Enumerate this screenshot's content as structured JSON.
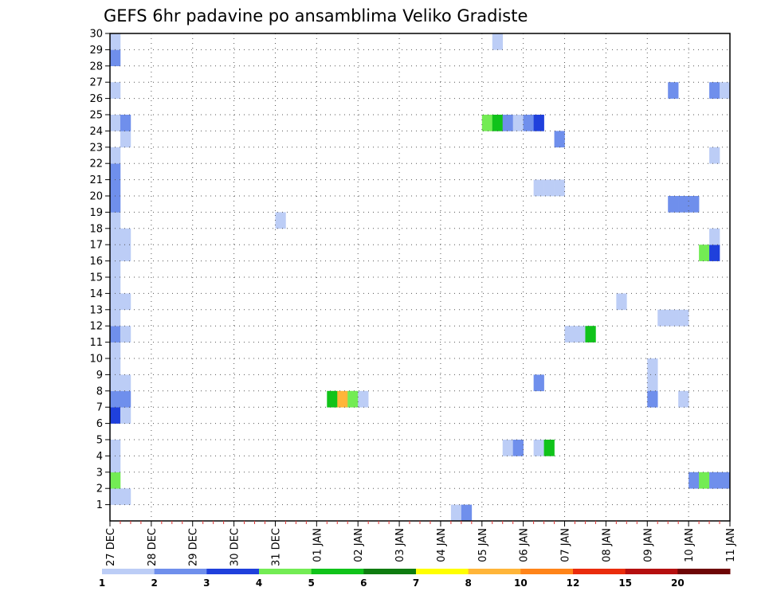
{
  "chart_data": {
    "type": "heatmap",
    "title": "GEFS 6hr padavine po ansamblima Veliko Gradiste",
    "xlabel": "",
    "ylabel": "",
    "x_tick_labels": [
      "27 DEC",
      "28 DEC",
      "29 DEC",
      "30 DEC",
      "31 DEC",
      "01 JAN",
      "02 JAN",
      "03 JAN",
      "04 JAN",
      "05 JAN",
      "06 JAN",
      "07 JAN",
      "08 JAN",
      "09 JAN",
      "10 JAN",
      "11 JAN"
    ],
    "y_tick_labels": [
      "1",
      "2",
      "3",
      "4",
      "5",
      "6",
      "7",
      "8",
      "9",
      "10",
      "11",
      "12",
      "13",
      "14",
      "15",
      "16",
      "17",
      "18",
      "19",
      "20",
      "21",
      "22",
      "23",
      "24",
      "25",
      "26",
      "27",
      "28",
      "29",
      "30"
    ],
    "xlim_days": [
      0,
      15
    ],
    "ylim": [
      0,
      30
    ],
    "grid": true,
    "colorbar": {
      "labels": [
        "1",
        "2",
        "3",
        "4",
        "5",
        "6",
        "7",
        "8",
        "10",
        "12",
        "15",
        "20"
      ],
      "colors": [
        "#bccdf6",
        "#6f8fec",
        "#1f40dc",
        "#73ec54",
        "#10c31a",
        "#0f7c10",
        "#ffff00",
        "#ffb539",
        "#ff8419",
        "#ea2c0c",
        "#b50f0f",
        "#6e0606"
      ]
    },
    "cells": [
      {
        "t": 0.0,
        "member": 1,
        "color_class": 0
      },
      {
        "t": 0.25,
        "member": 1,
        "color_class": 0
      },
      {
        "t": 0.0,
        "member": 2,
        "color_class": 3
      },
      {
        "t": 0.0,
        "member": 3,
        "color_class": 0
      },
      {
        "t": 0.0,
        "member": 4,
        "color_class": 0
      },
      {
        "t": 0.0,
        "member": 6,
        "color_class": 2
      },
      {
        "t": 0.25,
        "member": 6,
        "color_class": 0
      },
      {
        "t": 0.0,
        "member": 7,
        "color_class": 1
      },
      {
        "t": 0.25,
        "member": 7,
        "color_class": 1
      },
      {
        "t": 0.0,
        "member": 8,
        "color_class": 0
      },
      {
        "t": 0.25,
        "member": 8,
        "color_class": 0
      },
      {
        "t": 0.0,
        "member": 9,
        "color_class": 0
      },
      {
        "t": 0.0,
        "member": 10,
        "color_class": 0
      },
      {
        "t": 0.0,
        "member": 11,
        "color_class": 1
      },
      {
        "t": 0.25,
        "member": 11,
        "color_class": 0
      },
      {
        "t": 0.0,
        "member": 12,
        "color_class": 0
      },
      {
        "t": 0.0,
        "member": 13,
        "color_class": 0
      },
      {
        "t": 0.25,
        "member": 13,
        "color_class": 0
      },
      {
        "t": 0.0,
        "member": 14,
        "color_class": 0
      },
      {
        "t": 0.0,
        "member": 15,
        "color_class": 0
      },
      {
        "t": 0.0,
        "member": 16,
        "color_class": 0
      },
      {
        "t": 0.25,
        "member": 16,
        "color_class": 0
      },
      {
        "t": 0.0,
        "member": 17,
        "color_class": 0
      },
      {
        "t": 0.25,
        "member": 17,
        "color_class": 0
      },
      {
        "t": 0.0,
        "member": 18,
        "color_class": 0
      },
      {
        "t": 0.0,
        "member": 19,
        "color_class": 1
      },
      {
        "t": 0.0,
        "member": 20,
        "color_class": 1
      },
      {
        "t": 0.0,
        "member": 21,
        "color_class": 1
      },
      {
        "t": 0.0,
        "member": 22,
        "color_class": 0
      },
      {
        "t": 0.25,
        "member": 23,
        "color_class": 0
      },
      {
        "t": 0.0,
        "member": 24,
        "color_class": 0
      },
      {
        "t": 0.25,
        "member": 24,
        "color_class": 1
      },
      {
        "t": 0.0,
        "member": 26,
        "color_class": 0
      },
      {
        "t": 0.0,
        "member": 28,
        "color_class": 1
      },
      {
        "t": 0.0,
        "member": 29,
        "color_class": 0
      },
      {
        "t": 4.0,
        "member": 18,
        "color_class": 0
      },
      {
        "t": 5.25,
        "member": 7,
        "color_class": 4
      },
      {
        "t": 5.5,
        "member": 7,
        "color_class": 7
      },
      {
        "t": 5.75,
        "member": 7,
        "color_class": 3
      },
      {
        "t": 6.0,
        "member": 7,
        "color_class": 0
      },
      {
        "t": 8.25,
        "member": 0,
        "color_class": 0
      },
      {
        "t": 8.5,
        "member": 0,
        "color_class": 1
      },
      {
        "t": 9.0,
        "member": 24,
        "color_class": 3
      },
      {
        "t": 9.25,
        "member": 24,
        "color_class": 4
      },
      {
        "t": 9.5,
        "member": 24,
        "color_class": 1
      },
      {
        "t": 9.75,
        "member": 24,
        "color_class": 0
      },
      {
        "t": 10.0,
        "member": 24,
        "color_class": 1
      },
      {
        "t": 10.25,
        "member": 24,
        "color_class": 2
      },
      {
        "t": 9.25,
        "member": 29,
        "color_class": 0
      },
      {
        "t": 9.5,
        "member": 4,
        "color_class": 0
      },
      {
        "t": 9.75,
        "member": 4,
        "color_class": 1
      },
      {
        "t": 10.25,
        "member": 4,
        "color_class": 0
      },
      {
        "t": 10.5,
        "member": 4,
        "color_class": 4
      },
      {
        "t": 10.25,
        "member": 8,
        "color_class": 1
      },
      {
        "t": 10.25,
        "member": 20,
        "color_class": 0
      },
      {
        "t": 10.5,
        "member": 20,
        "color_class": 0
      },
      {
        "t": 10.75,
        "member": 20,
        "color_class": 0
      },
      {
        "t": 10.75,
        "member": 23,
        "color_class": 1
      },
      {
        "t": 11.0,
        "member": 11,
        "color_class": 0
      },
      {
        "t": 11.25,
        "member": 11,
        "color_class": 0
      },
      {
        "t": 11.5,
        "member": 11,
        "color_class": 4
      },
      {
        "t": 12.25,
        "member": 13,
        "color_class": 0
      },
      {
        "t": 13.0,
        "member": 8,
        "color_class": 0
      },
      {
        "t": 13.0,
        "member": 9,
        "color_class": 0
      },
      {
        "t": 13.0,
        "member": 7,
        "color_class": 1
      },
      {
        "t": 13.25,
        "member": 12,
        "color_class": 0
      },
      {
        "t": 13.5,
        "member": 12,
        "color_class": 0
      },
      {
        "t": 13.75,
        "member": 12,
        "color_class": 0
      },
      {
        "t": 13.75,
        "member": 7,
        "color_class": 0
      },
      {
        "t": 13.5,
        "member": 26,
        "color_class": 1
      },
      {
        "t": 13.5,
        "member": 19,
        "color_class": 1
      },
      {
        "t": 13.75,
        "member": 19,
        "color_class": 1
      },
      {
        "t": 14.0,
        "member": 19,
        "color_class": 1
      },
      {
        "t": 14.0,
        "member": 2,
        "color_class": 1
      },
      {
        "t": 14.25,
        "member": 2,
        "color_class": 3
      },
      {
        "t": 14.5,
        "member": 2,
        "color_class": 1
      },
      {
        "t": 14.75,
        "member": 2,
        "color_class": 1
      },
      {
        "t": 14.25,
        "member": 16,
        "color_class": 3
      },
      {
        "t": 14.5,
        "member": 16,
        "color_class": 2
      },
      {
        "t": 14.5,
        "member": 17,
        "color_class": 0
      },
      {
        "t": 14.5,
        "member": 22,
        "color_class": 0
      },
      {
        "t": 14.5,
        "member": 26,
        "color_class": 1
      },
      {
        "t": 14.75,
        "member": 26,
        "color_class": 0
      }
    ]
  }
}
